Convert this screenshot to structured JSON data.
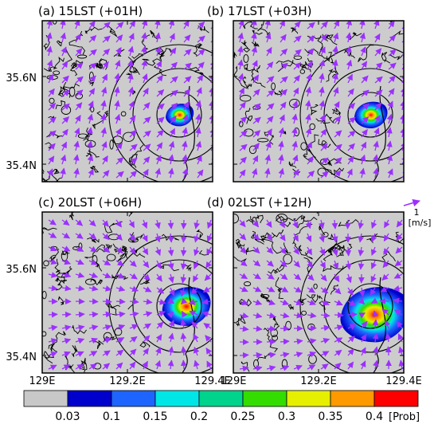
{
  "panels": [
    {
      "label": "(a)  15LST  (+01H)",
      "blob_scale": 0.55,
      "blob_dx": 0,
      "blob_dy": 0
    },
    {
      "label": "(b)  17LST  (+03H)",
      "blob_scale": 0.65,
      "blob_dx": 0,
      "blob_dy": 0
    },
    {
      "label": "(c)  20LST  (+06H)",
      "blob_scale": 0.95,
      "blob_dx": 8,
      "blob_dy": 0
    },
    {
      "label": "(d)  02LST  (+12H)",
      "blob_scale": 1.35,
      "blob_dx": 4,
      "blob_dy": 10
    }
  ],
  "y_ticks": [
    "35.6N",
    "35.4N"
  ],
  "x_ticks": [
    "129E",
    "129.2E",
    "129.4E"
  ],
  "vector_reference": {
    "value": "1",
    "unit": "[m/s]"
  },
  "colorbar": {
    "colors": [
      "#c8c8c8",
      "#0000cc",
      "#1e64ff",
      "#00e6e6",
      "#00d38c",
      "#33dd00",
      "#e6ef00",
      "#ff9900",
      "#ff0000"
    ],
    "labels": [
      "0.03",
      "0.1",
      "0.15",
      "0.2",
      "0.25",
      "0.3",
      "0.35",
      "0.4"
    ],
    "unit": "[Prob]"
  }
}
